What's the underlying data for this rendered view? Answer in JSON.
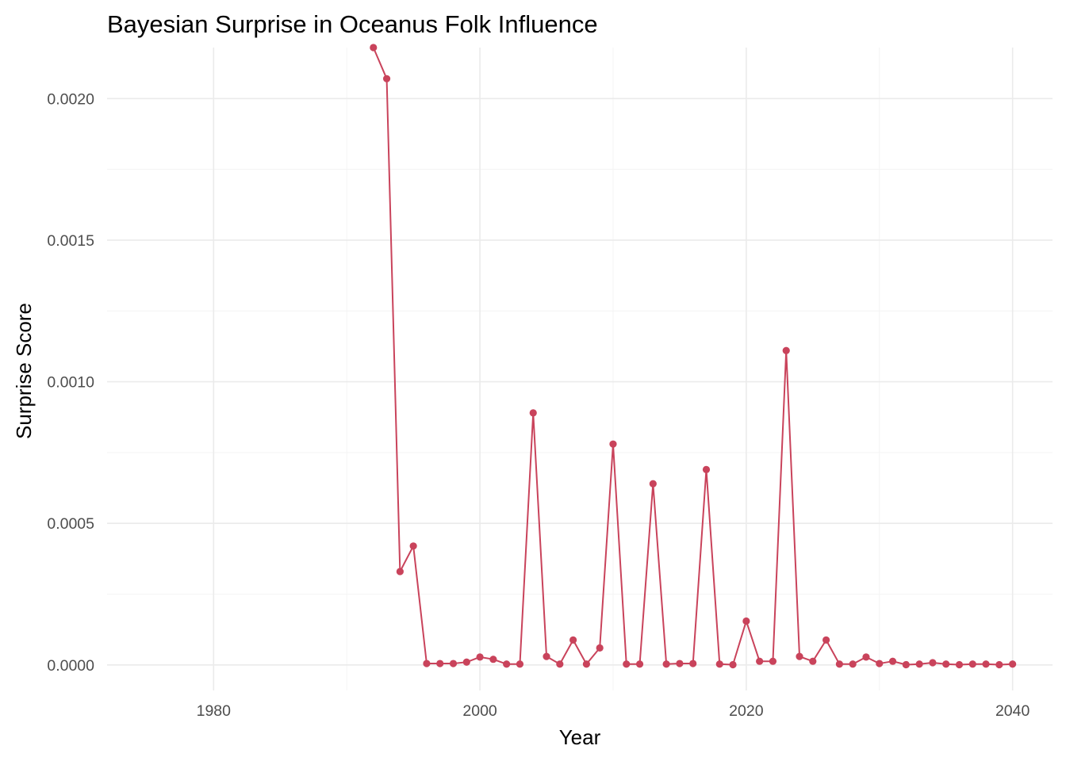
{
  "chart_data": {
    "type": "line",
    "title": "Bayesian Surprise in Oceanus Folk Influence",
    "xlabel": "Year",
    "ylabel": "Surprise Score",
    "xlim": [
      1972,
      2043
    ],
    "ylim": [
      -9e-05,
      0.00218
    ],
    "x_ticks": [
      1980,
      2000,
      2020,
      2040
    ],
    "y_ticks": [
      0.0,
      0.0005,
      0.001,
      0.0015,
      0.002
    ],
    "y_tick_labels": [
      "0.0000",
      "0.0005",
      "0.0010",
      "0.0015",
      "0.0020"
    ],
    "grid": true,
    "legend": "none",
    "color": "#c9435b",
    "series": [
      {
        "x": [
          1992,
          1993,
          1994,
          1995,
          1996,
          1997,
          1998,
          1999,
          2000,
          2001,
          2002,
          2003,
          2004,
          2005,
          2006,
          2007,
          2008,
          2009,
          2010,
          2011,
          2012,
          2013,
          2014,
          2015,
          2016,
          2017,
          2018,
          2019,
          2020,
          2021,
          2022,
          2023,
          2024,
          2025,
          2026,
          2027,
          2028,
          2029,
          2030,
          2031,
          2032,
          2033,
          2034,
          2035,
          2036,
          2037,
          2038,
          2039,
          2040
        ],
        "values": [
          0.00218,
          0.00207,
          0.00033,
          0.00042,
          5e-06,
          5e-06,
          5e-06,
          1e-05,
          2.8e-05,
          2e-05,
          3e-06,
          3e-06,
          0.00089,
          3e-05,
          3e-06,
          8.8e-05,
          3e-06,
          6e-05,
          0.00078,
          3e-06,
          3e-06,
          0.00064,
          3e-06,
          5e-06,
          5e-06,
          0.00069,
          3e-06,
          1e-06,
          0.000155,
          1.3e-05,
          1.3e-05,
          0.00111,
          3e-05,
          1.3e-05,
          8.8e-05,
          3e-06,
          3e-06,
          2.8e-05,
          5e-06,
          1.3e-05,
          1e-06,
          3e-06,
          8e-06,
          3e-06,
          1e-06,
          3e-06,
          3e-06,
          1e-06,
          3e-06
        ]
      }
    ]
  }
}
